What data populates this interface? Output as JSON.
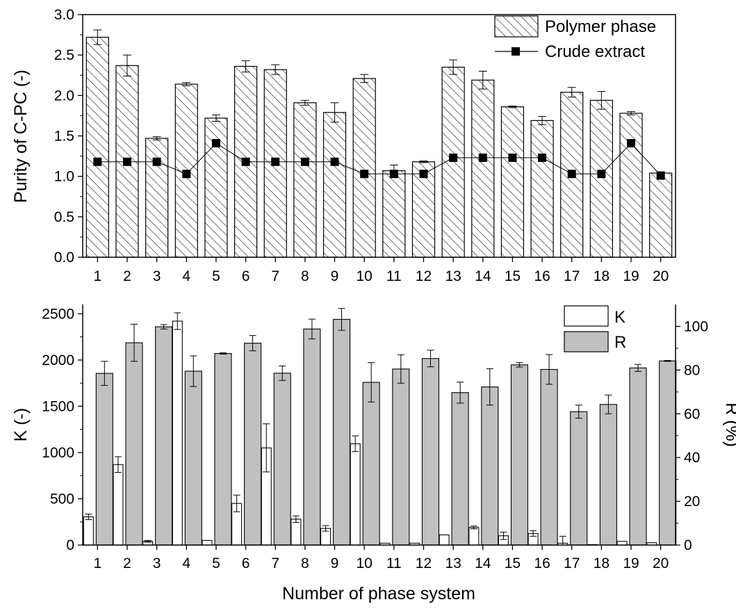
{
  "xlabel": "Number of phase system",
  "categories": [
    "1",
    "2",
    "3",
    "4",
    "5",
    "6",
    "7",
    "8",
    "9",
    "10",
    "11",
    "12",
    "13",
    "14",
    "15",
    "16",
    "17",
    "18",
    "19",
    "20"
  ],
  "chart_data": [
    {
      "type": "bar",
      "title": "",
      "ylabel": "Purity of C-PC (-)",
      "ylim": [
        0,
        3.0
      ],
      "yticks": [
        "0.0",
        "0.5",
        "1.0",
        "1.5",
        "2.0",
        "2.5",
        "3.0"
      ],
      "legend_position": "top-right",
      "series": [
        {
          "name": "Polymer phase",
          "kind": "bar",
          "pattern": "hatched",
          "values": [
            2.72,
            2.37,
            1.47,
            2.14,
            1.72,
            2.36,
            2.32,
            1.91,
            1.79,
            2.21,
            1.07,
            1.18,
            2.35,
            2.19,
            1.86,
            1.69,
            2.04,
            1.94,
            1.78,
            1.04
          ],
          "errors": [
            0.09,
            0.13,
            0.02,
            0.02,
            0.04,
            0.07,
            0.06,
            0.03,
            0.12,
            0.05,
            0.07,
            0.01,
            0.09,
            0.11,
            0.01,
            0.05,
            0.06,
            0.11,
            0.02,
            0.01
          ]
        },
        {
          "name": "Crude extract",
          "kind": "line",
          "marker": "square",
          "values": [
            1.18,
            1.18,
            1.18,
            1.03,
            1.41,
            1.18,
            1.18,
            1.18,
            1.18,
            1.03,
            1.03,
            1.03,
            1.23,
            1.23,
            1.23,
            1.23,
            1.03,
            1.03,
            1.41,
            1.01
          ]
        }
      ]
    },
    {
      "type": "bar",
      "title": "",
      "ylabel": "K (-)",
      "ylabel_right": "R (%)",
      "ylim": [
        0,
        2600
      ],
      "ylim_right": [
        0,
        110
      ],
      "yticks": [
        "0",
        "500",
        "1000",
        "1500",
        "2000",
        "2500"
      ],
      "yticks_right": [
        "0",
        "20",
        "40",
        "60",
        "80",
        "100"
      ],
      "legend_position": "top-right",
      "series": [
        {
          "name": "K",
          "axis": "left",
          "color": "#ffffff",
          "values": [
            305,
            870,
            40,
            2420,
            50,
            450,
            1050,
            280,
            180,
            1095,
            20,
            20,
            110,
            190,
            100,
            125,
            20,
            5,
            40,
            25
          ],
          "errors": [
            30,
            85,
            10,
            90,
            0,
            90,
            260,
            35,
            30,
            85,
            0,
            0,
            0,
            15,
            40,
            30,
            75,
            0,
            0,
            0
          ]
        },
        {
          "name": "R",
          "axis": "right",
          "color": "#c0c0c0",
          "values": [
            78.5,
            92.5,
            99.8,
            79.5,
            87.6,
            92.3,
            78.6,
            98.8,
            103.2,
            74.4,
            80.5,
            85.3,
            69.7,
            72.3,
            82.4,
            80.3,
            61.0,
            64.3,
            81.0,
            84.2
          ],
          "errors": [
            5.5,
            8.5,
            1.0,
            7.0,
            0.3,
            3.5,
            3.3,
            4.5,
            5.0,
            9.0,
            6.5,
            3.8,
            4.8,
            8.3,
            1.0,
            6.8,
            3.0,
            4.3,
            1.6,
            0.2
          ]
        }
      ]
    }
  ]
}
